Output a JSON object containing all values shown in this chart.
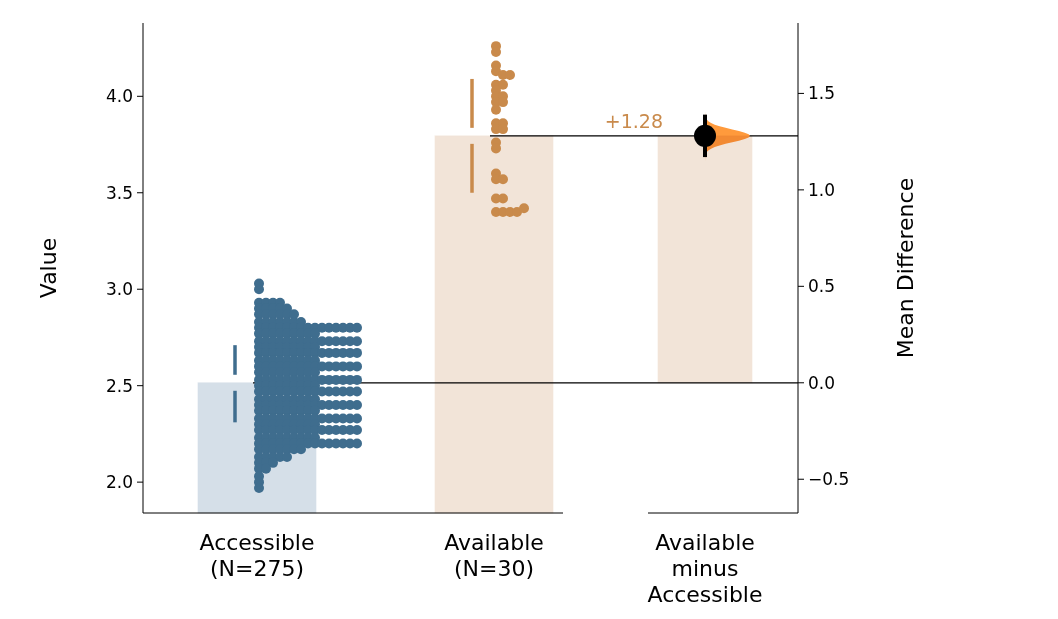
{
  "chart_data": {
    "type": "bar",
    "ylabel": "Value",
    "y2label": "Mean Difference",
    "categories": [
      "Accessible\n(N=275)",
      "Available\n(N=30)",
      "Available\nminus\nAccessible"
    ],
    "ylim": [
      1.84,
      4.38
    ],
    "yticks": [
      {
        "value": 2,
        "label": "2.0"
      },
      {
        "value": 2.5,
        "label": "2.5"
      },
      {
        "value": 3,
        "label": "3.0"
      },
      {
        "value": 3.5,
        "label": "3.5"
      },
      {
        "value": 4,
        "label": "4.0"
      }
    ],
    "y2lim": [
      -0.675,
      1.865
    ],
    "y2ticks": [
      {
        "value": -0.5,
        "label": "−0.5"
      },
      {
        "value": 0,
        "label": "0.0"
      },
      {
        "value": 0.5,
        "label": "0.5"
      },
      {
        "value": 1,
        "label": "1.0"
      },
      {
        "value": 1.5,
        "label": "1.5"
      }
    ],
    "grid": false,
    "series": [
      {
        "colors": [
          "#d5dfe8",
          "#f2e4d8",
          null
        ],
        "values": [
          2.515,
          3.795,
          null
        ],
        "errors": [
          [
            2.31,
            2.71
          ],
          [
            3.5,
            4.09
          ],
          null
        ]
      },
      {
        "type": "scatter",
        "color": "#3f6d8e",
        "x": [
          "Accessible\n(N=275)",
          "Accessible\n(N=275)",
          "Accessible\n(N=275)",
          "Accessible\n(N=275)",
          "Accessible\n(N=275)",
          "Accessible\n(N=275)",
          "Accessible\n(N=275)",
          "Accessible\n(N=275)",
          "Accessible\n(N=275)",
          "Accessible\n(N=275)",
          "Accessible\n(N=275)",
          "Accessible\n(N=275)",
          "Accessible\n(N=275)",
          "Accessible\n(N=275)",
          "Accessible\n(N=275)",
          "Accessible\n(N=275)",
          "Accessible\n(N=275)",
          "Accessible\n(N=275)",
          "Accessible\n(N=275)",
          "Accessible\n(N=275)",
          "Accessible\n(N=275)",
          "Accessible\n(N=275)",
          "Accessible\n(N=275)",
          "Accessible\n(N=275)",
          "Accessible\n(N=275)",
          "Accessible\n(N=275)",
          "Accessible\n(N=275)",
          "Accessible\n(N=275)",
          "Accessible\n(N=275)",
          "Accessible\n(N=275)",
          "Accessible\n(N=275)",
          "Accessible\n(N=275)",
          "Accessible\n(N=275)",
          "Accessible\n(N=275)",
          "Accessible\n(N=275)",
          "Accessible\n(N=275)",
          "Accessible\n(N=275)",
          "Accessible\n(N=275)",
          "Accessible\n(N=275)",
          "Accessible\n(N=275)",
          "Accessible\n(N=275)",
          "Accessible\n(N=275)",
          "Accessible\n(N=275)",
          "Accessible\n(N=275)",
          "Accessible\n(N=275)",
          "Accessible\n(N=275)",
          "Accessible\n(N=275)",
          "Accessible\n(N=275)",
          "Accessible\n(N=275)",
          "Accessible\n(N=275)",
          "Accessible\n(N=275)",
          "Accessible\n(N=275)",
          "Accessible\n(N=275)",
          "Accessible\n(N=275)",
          "Accessible\n(N=275)",
          "Accessible\n(N=275)",
          "Accessible\n(N=275)",
          "Accessible\n(N=275)",
          "Accessible\n(N=275)",
          "Accessible\n(N=275)",
          "Accessible\n(N=275)",
          "Accessible\n(N=275)",
          "Accessible\n(N=275)",
          "Accessible\n(N=275)",
          "Accessible\n(N=275)",
          "Accessible\n(N=275)",
          "Accessible\n(N=275)",
          "Accessible\n(N=275)",
          "Accessible\n(N=275)",
          "Accessible\n(N=275)",
          "Accessible\n(N=275)",
          "Accessible\n(N=275)",
          "Accessible\n(N=275)",
          "Accessible\n(N=275)",
          "Accessible\n(N=275)",
          "Accessible\n(N=275)",
          "Accessible\n(N=275)",
          "Accessible\n(N=275)",
          "Accessible\n(N=275)",
          "Accessible\n(N=275)",
          "Accessible\n(N=275)",
          "Accessible\n(N=275)",
          "Accessible\n(N=275)",
          "Accessible\n(N=275)",
          "Accessible\n(N=275)",
          "Accessible\n(N=275)",
          "Accessible\n(N=275)",
          "Accessible\n(N=275)",
          "Accessible\n(N=275)",
          "Accessible\n(N=275)",
          "Accessible\n(N=275)",
          "Accessible\n(N=275)",
          "Accessible\n(N=275)",
          "Accessible\n(N=275)",
          "Accessible\n(N=275)",
          "Accessible\n(N=275)",
          "Accessible\n(N=275)",
          "Accessible\n(N=275)",
          "Accessible\n(N=275)",
          "Accessible\n(N=275)",
          "Accessible\n(N=275)",
          "Accessible\n(N=275)",
          "Accessible\n(N=275)",
          "Accessible\n(N=275)",
          "Accessible\n(N=275)",
          "Accessible\n(N=275)",
          "Accessible\n(N=275)",
          "Accessible\n(N=275)",
          "Accessible\n(N=275)",
          "Accessible\n(N=275)",
          "Accessible\n(N=275)",
          "Accessible\n(N=275)",
          "Accessible\n(N=275)",
          "Accessible\n(N=275)",
          "Accessible\n(N=275)",
          "Accessible\n(N=275)",
          "Accessible\n(N=275)",
          "Accessible\n(N=275)",
          "Accessible\n(N=275)",
          "Accessible\n(N=275)",
          "Accessible\n(N=275)",
          "Accessible\n(N=275)",
          "Accessible\n(N=275)",
          "Accessible\n(N=275)",
          "Accessible\n(N=275)",
          "Accessible\n(N=275)",
          "Accessible\n(N=275)",
          "Accessible\n(N=275)",
          "Accessible\n(N=275)",
          "Accessible\n(N=275)",
          "Accessible\n(N=275)",
          "Accessible\n(N=275)",
          "Accessible\n(N=275)",
          "Accessible\n(N=275)",
          "Accessible\n(N=275)",
          "Accessible\n(N=275)",
          "Accessible\n(N=275)",
          "Accessible\n(N=275)",
          "Accessible\n(N=275)",
          "Accessible\n(N=275)",
          "Accessible\n(N=275)",
          "Accessible\n(N=275)",
          "Accessible\n(N=275)",
          "Accessible\n(N=275)",
          "Accessible\n(N=275)",
          "Accessible\n(N=275)",
          "Accessible\n(N=275)",
          "Accessible\n(N=275)",
          "Accessible\n(N=275)",
          "Accessible\n(N=275)",
          "Accessible\n(N=275)",
          "Accessible\n(N=275)",
          "Accessible\n(N=275)",
          "Accessible\n(N=275)",
          "Accessible\n(N=275)",
          "Accessible\n(N=275)",
          "Accessible\n(N=275)",
          "Accessible\n(N=275)",
          "Accessible\n(N=275)",
          "Accessible\n(N=275)",
          "Accessible\n(N=275)",
          "Accessible\n(N=275)",
          "Accessible\n(N=275)",
          "Accessible\n(N=275)",
          "Accessible\n(N=275)",
          "Accessible\n(N=275)",
          "Accessible\n(N=275)",
          "Accessible\n(N=275)",
          "Accessible\n(N=275)",
          "Accessible\n(N=275)",
          "Accessible\n(N=275)",
          "Accessible\n(N=275)",
          "Accessible\n(N=275)",
          "Accessible\n(N=275)",
          "Accessible\n(N=275)",
          "Accessible\n(N=275)",
          "Accessible\n(N=275)",
          "Accessible\n(N=275)",
          "Accessible\n(N=275)",
          "Accessible\n(N=275)",
          "Accessible\n(N=275)",
          "Accessible\n(N=275)",
          "Accessible\n(N=275)",
          "Accessible\n(N=275)",
          "Accessible\n(N=275)",
          "Accessible\n(N=275)",
          "Accessible\n(N=275)",
          "Accessible\n(N=275)",
          "Accessible\n(N=275)",
          "Accessible\n(N=275)",
          "Accessible\n(N=275)",
          "Accessible\n(N=275)",
          "Accessible\n(N=275)",
          "Accessible\n(N=275)",
          "Accessible\n(N=275)",
          "Accessible\n(N=275)",
          "Accessible\n(N=275)",
          "Accessible\n(N=275)",
          "Accessible\n(N=275)",
          "Accessible\n(N=275)",
          "Accessible\n(N=275)",
          "Accessible\n(N=275)",
          "Accessible\n(N=275)",
          "Accessible\n(N=275)",
          "Accessible\n(N=275)",
          "Accessible\n(N=275)",
          "Accessible\n(N=275)",
          "Accessible\n(N=275)",
          "Accessible\n(N=275)",
          "Accessible\n(N=275)",
          "Accessible\n(N=275)",
          "Accessible\n(N=275)",
          "Accessible\n(N=275)",
          "Accessible\n(N=275)",
          "Accessible\n(N=275)",
          "Accessible\n(N=275)",
          "Accessible\n(N=275)",
          "Accessible\n(N=275)",
          "Accessible\n(N=275)",
          "Accessible\n(N=275)",
          "Accessible\n(N=275)",
          "Accessible\n(N=275)",
          "Accessible\n(N=275)",
          "Accessible\n(N=275)",
          "Accessible\n(N=275)",
          "Accessible\n(N=275)",
          "Accessible\n(N=275)",
          "Accessible\n(N=275)",
          "Accessible\n(N=275)",
          "Accessible\n(N=275)",
          "Accessible\n(N=275)",
          "Accessible\n(N=275)",
          "Accessible\n(N=275)",
          "Accessible\n(N=275)",
          "Accessible\n(N=275)",
          "Accessible\n(N=275)",
          "Accessible\n(N=275)",
          "Accessible\n(N=275)",
          "Accessible\n(N=275)",
          "Accessible\n(N=275)",
          "Accessible\n(N=275)",
          "Accessible\n(N=275)",
          "Accessible\n(N=275)",
          "Accessible\n(N=275)",
          "Accessible\n(N=275)",
          "Accessible\n(N=275)",
          "Accessible\n(N=275)",
          "Accessible\n(N=275)",
          "Accessible\n(N=275)",
          "Accessible\n(N=275)",
          "Accessible\n(N=275)",
          "Accessible\n(N=275)",
          "Accessible\n(N=275)",
          "Accessible\n(N=275)",
          "Accessible\n(N=275)",
          "Accessible\n(N=275)",
          "Accessible\n(N=275)",
          "Accessible\n(N=275)",
          "Accessible\n(N=275)",
          "Accessible\n(N=275)",
          "Accessible\n(N=275)",
          "Accessible\n(N=275)",
          "Accessible\n(N=275)",
          "Accessible\n(N=275)",
          "Accessible\n(N=275)",
          "Accessible\n(N=275)",
          "Accessible\n(N=275)",
          "Accessible\n(N=275)",
          "Accessible\n(N=275)",
          "Accessible\n(N=275)",
          "Accessible\n(N=275)",
          "Accessible\n(N=275)",
          "Accessible\n(N=275)",
          "Accessible\n(N=275)",
          "Accessible\n(N=275)"
        ],
        "values": [
          3.03,
          3.0,
          2.93,
          2.93,
          2.93,
          2.93,
          2.9,
          2.9,
          2.9,
          2.9,
          2.9,
          2.87,
          2.87,
          2.87,
          2.87,
          2.87,
          2.87,
          2.83,
          2.83,
          2.83,
          2.83,
          2.83,
          2.83,
          2.83,
          2.8,
          2.8,
          2.8,
          2.8,
          2.8,
          2.8,
          2.8,
          2.8,
          2.8,
          2.8,
          2.8,
          2.8,
          2.8,
          2.8,
          2.8,
          2.77,
          2.77,
          2.77,
          2.77,
          2.77,
          2.77,
          2.77,
          2.77,
          2.77,
          2.73,
          2.73,
          2.73,
          2.73,
          2.73,
          2.73,
          2.73,
          2.73,
          2.73,
          2.73,
          2.73,
          2.73,
          2.73,
          2.73,
          2.73,
          2.7,
          2.7,
          2.7,
          2.7,
          2.7,
          2.7,
          2.7,
          2.7,
          2.7,
          2.67,
          2.67,
          2.67,
          2.67,
          2.67,
          2.67,
          2.67,
          2.67,
          2.67,
          2.67,
          2.67,
          2.67,
          2.67,
          2.67,
          2.67,
          2.63,
          2.63,
          2.63,
          2.63,
          2.63,
          2.63,
          2.63,
          2.63,
          2.63,
          2.6,
          2.6,
          2.6,
          2.6,
          2.6,
          2.6,
          2.6,
          2.6,
          2.6,
          2.6,
          2.6,
          2.6,
          2.6,
          2.6,
          2.6,
          2.57,
          2.57,
          2.57,
          2.57,
          2.57,
          2.57,
          2.57,
          2.57,
          2.57,
          2.53,
          2.53,
          2.53,
          2.53,
          2.53,
          2.53,
          2.53,
          2.53,
          2.53,
          2.53,
          2.53,
          2.53,
          2.53,
          2.53,
          2.53,
          2.5,
          2.5,
          2.5,
          2.5,
          2.5,
          2.5,
          2.5,
          2.5,
          2.5,
          2.47,
          2.47,
          2.47,
          2.47,
          2.47,
          2.47,
          2.47,
          2.47,
          2.47,
          2.47,
          2.47,
          2.47,
          2.47,
          2.47,
          2.47,
          2.43,
          2.43,
          2.43,
          2.43,
          2.43,
          2.43,
          2.43,
          2.43,
          2.43,
          2.4,
          2.4,
          2.4,
          2.4,
          2.4,
          2.4,
          2.4,
          2.4,
          2.4,
          2.4,
          2.4,
          2.4,
          2.4,
          2.4,
          2.4,
          2.37,
          2.37,
          2.37,
          2.37,
          2.37,
          2.37,
          2.37,
          2.37,
          2.37,
          2.33,
          2.33,
          2.33,
          2.33,
          2.33,
          2.33,
          2.33,
          2.33,
          2.33,
          2.33,
          2.33,
          2.33,
          2.33,
          2.33,
          2.33,
          2.3,
          2.3,
          2.3,
          2.3,
          2.3,
          2.3,
          2.3,
          2.3,
          2.3,
          2.27,
          2.27,
          2.27,
          2.27,
          2.27,
          2.27,
          2.27,
          2.27,
          2.27,
          2.27,
          2.27,
          2.27,
          2.27,
          2.27,
          2.27,
          2.23,
          2.23,
          2.23,
          2.23,
          2.23,
          2.23,
          2.23,
          2.23,
          2.23,
          2.2,
          2.2,
          2.2,
          2.2,
          2.2,
          2.2,
          2.2,
          2.2,
          2.2,
          2.2,
          2.2,
          2.2,
          2.2,
          2.2,
          2.2,
          2.17,
          2.17,
          2.17,
          2.17,
          2.17,
          2.17,
          2.17,
          2.13,
          2.13,
          2.13,
          2.13,
          2.13,
          2.1,
          2.1,
          2.1,
          2.07,
          2.07,
          2.03,
          2.0,
          1.97
        ]
      },
      {
        "type": "scatter",
        "color": "#c98a4b",
        "x": [
          "Available\n(N=30)",
          "Available\n(N=30)",
          "Available\n(N=30)",
          "Available\n(N=30)",
          "Available\n(N=30)",
          "Available\n(N=30)",
          "Available\n(N=30)",
          "Available\n(N=30)",
          "Available\n(N=30)",
          "Available\n(N=30)",
          "Available\n(N=30)",
          "Available\n(N=30)",
          "Available\n(N=30)",
          "Available\n(N=30)",
          "Available\n(N=30)",
          "Available\n(N=30)",
          "Available\n(N=30)",
          "Available\n(N=30)",
          "Available\n(N=30)",
          "Available\n(N=30)",
          "Available\n(N=30)",
          "Available\n(N=30)",
          "Available\n(N=30)",
          "Available\n(N=30)",
          "Available\n(N=30)",
          "Available\n(N=30)",
          "Available\n(N=30)",
          "Available\n(N=30)",
          "Available\n(N=30)",
          "Available\n(N=30)"
        ],
        "values": [
          4.26,
          4.23,
          4.16,
          4.13,
          4.11,
          4.11,
          4.06,
          4.06,
          4.03,
          4.0,
          4.0,
          3.97,
          3.97,
          3.93,
          3.86,
          3.86,
          3.83,
          3.83,
          3.76,
          3.73,
          3.6,
          3.57,
          3.57,
          3.47,
          3.47,
          3.4,
          3.4,
          3.4,
          3.4,
          3.42
        ]
      },
      {
        "type": "bar",
        "axis": "y2",
        "colors": [
          null,
          null,
          "#f2e4d8"
        ],
        "values": [
          null,
          null,
          1.28
        ]
      },
      {
        "type": "scatter",
        "axis": "y2",
        "color": "#000000",
        "marker": "circle",
        "values": [
          null,
          null,
          1.28
        ],
        "errors": [
          null,
          null,
          [
            1.17,
            1.39
          ]
        ]
      }
    ],
    "ref_lines": [
      {
        "axis": "y2",
        "value": 0,
        "color": "#000000"
      },
      {
        "axis": "y2",
        "value": 1.28,
        "color": "#000000"
      }
    ],
    "annotations": [
      "+1.28"
    ]
  }
}
